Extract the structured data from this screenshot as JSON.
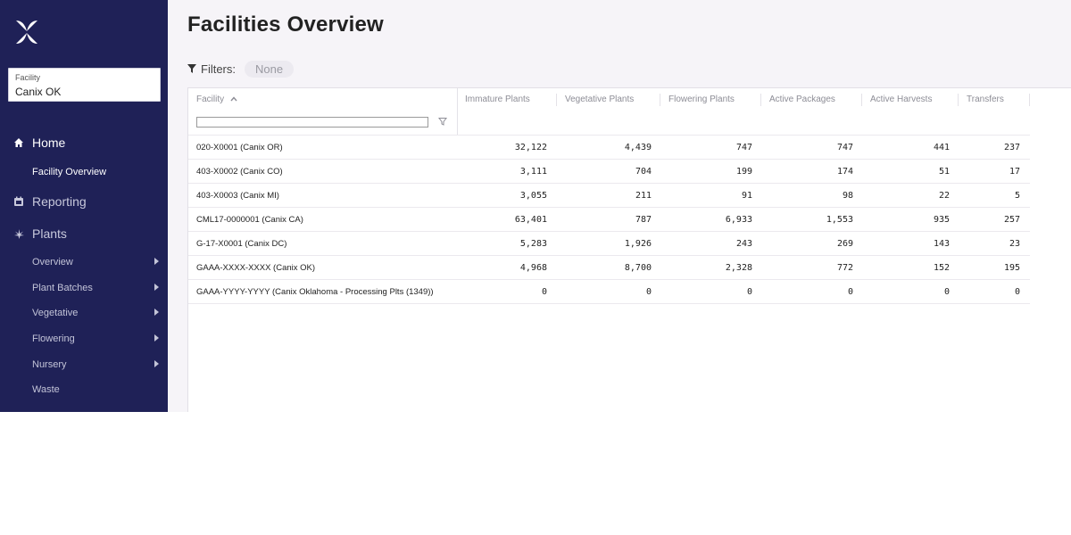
{
  "sidebar": {
    "facility_selector": {
      "label": "Facility",
      "value": "Canix OK"
    },
    "sections": [
      {
        "label": "Home",
        "icon": "home-icon"
      },
      {
        "label": "Reporting",
        "icon": "reporting-icon"
      },
      {
        "label": "Plants",
        "icon": "cannabis-leaf-icon"
      }
    ],
    "home_items": [
      {
        "label": "Facility Overview"
      }
    ],
    "plants_items": [
      {
        "label": "Overview",
        "has_submenu": true
      },
      {
        "label": "Plant Batches",
        "has_submenu": true
      },
      {
        "label": "Vegetative",
        "has_submenu": true
      },
      {
        "label": "Flowering",
        "has_submenu": true
      },
      {
        "label": "Nursery",
        "has_submenu": true
      },
      {
        "label": "Waste",
        "has_submenu": false
      }
    ]
  },
  "main": {
    "title": "Facilities Overview",
    "filters": {
      "label": "Filters:",
      "value": "None"
    }
  },
  "table": {
    "columns": [
      "Facility",
      "Immature Plants",
      "Vegetative Plants",
      "Flowering Plants",
      "Active Packages",
      "Active Harvests",
      "Transfers"
    ],
    "rows": [
      {
        "facility": "020-X0001 (Canix OR)",
        "immature": "32,122",
        "vegetative": "4,439",
        "flowering": "747",
        "packages": "747",
        "harvests": "441",
        "transfers": "237"
      },
      {
        "facility": "403-X0002 (Canix CO)",
        "immature": "3,111",
        "vegetative": "704",
        "flowering": "199",
        "packages": "174",
        "harvests": "51",
        "transfers": "17"
      },
      {
        "facility": "403-X0003 (Canix MI)",
        "immature": "3,055",
        "vegetative": "211",
        "flowering": "91",
        "packages": "98",
        "harvests": "22",
        "transfers": "5"
      },
      {
        "facility": "CML17-0000001 (Canix CA)",
        "immature": "63,401",
        "vegetative": "787",
        "flowering": "6,933",
        "packages": "1,553",
        "harvests": "935",
        "transfers": "257"
      },
      {
        "facility": "G-17-X0001 (Canix DC)",
        "immature": "5,283",
        "vegetative": "1,926",
        "flowering": "243",
        "packages": "269",
        "harvests": "143",
        "transfers": "23"
      },
      {
        "facility": "GAAA-XXXX-XXXX (Canix OK)",
        "immature": "4,968",
        "vegetative": "8,700",
        "flowering": "2,328",
        "packages": "772",
        "harvests": "152",
        "transfers": "195"
      },
      {
        "facility": "GAAA-YYYY-YYYY (Canix Oklahoma - Processing Plts (1349))",
        "immature": "0",
        "vegetative": "0",
        "flowering": "0",
        "packages": "0",
        "harvests": "0",
        "transfers": "0"
      }
    ]
  },
  "colors": {
    "sidebar_bg": "#1f2157",
    "main_bg": "#f6f4f8",
    "text": "#222222",
    "muted_header": "#8d8d96"
  }
}
